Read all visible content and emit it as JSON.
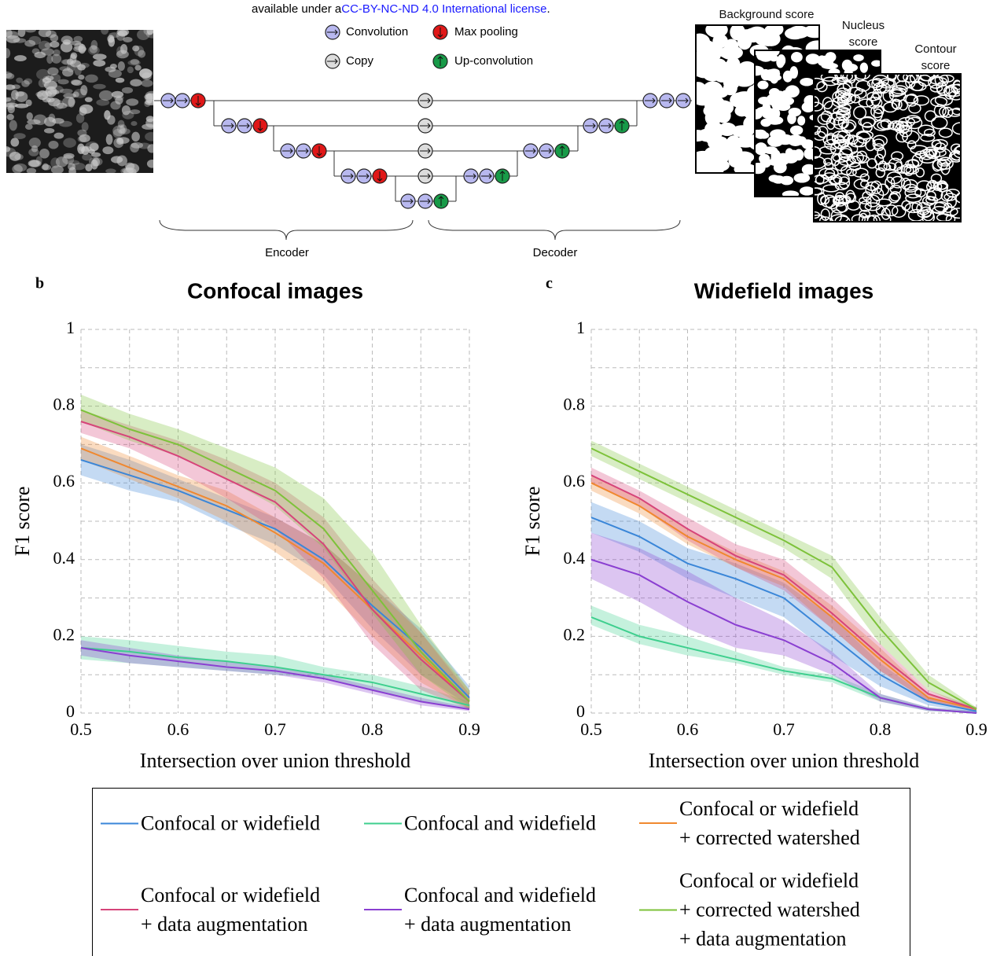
{
  "header": {
    "prefix": "available under a",
    "link": "CC-BY-NC-ND 4.0 International license",
    "suffix": "."
  },
  "diagram": {
    "legend": {
      "convolution": "Convolution",
      "max_pooling": "Max pooling",
      "copy": "Copy",
      "up_convolution": "Up-convolution"
    },
    "outputs": [
      "Background score",
      "Nucleus score",
      "Contour score"
    ],
    "encoder": "Encoder",
    "decoder": "Decoder"
  },
  "chart_data": [
    {
      "type": "line",
      "panel": "b",
      "title": "Confocal images",
      "x_label": "Intersection over union threshold",
      "y_label": "F1 score",
      "x": [
        0.5,
        0.55,
        0.6,
        0.65,
        0.7,
        0.75,
        0.8,
        0.85,
        0.9
      ],
      "xlim": [
        0.5,
        0.9
      ],
      "ylim": [
        0,
        1
      ],
      "xticks": [
        0.5,
        0.6,
        0.7,
        0.8,
        0.9
      ],
      "yticks": [
        0,
        0.2,
        0.4,
        0.6,
        0.8,
        1
      ],
      "minor_xticks": [
        0.55,
        0.65,
        0.75,
        0.85
      ],
      "minor_yticks": [
        0.1,
        0.3,
        0.5,
        0.7,
        0.9
      ],
      "grid": true,
      "series": [
        {
          "name": "Confocal or widefield",
          "color": "#3a86d8",
          "values": [
            0.66,
            0.62,
            0.58,
            0.53,
            0.48,
            0.4,
            0.28,
            0.17,
            0.04
          ],
          "lower": [
            0.62,
            0.58,
            0.55,
            0.49,
            0.44,
            0.36,
            0.22,
            0.1,
            0.02
          ],
          "upper": [
            0.7,
            0.66,
            0.61,
            0.56,
            0.51,
            0.44,
            0.33,
            0.22,
            0.07
          ]
        },
        {
          "name": "Confocal and widefield",
          "color": "#3ecf8e",
          "values": [
            0.17,
            0.16,
            0.145,
            0.135,
            0.12,
            0.1,
            0.08,
            0.05,
            0.02
          ],
          "lower": [
            0.14,
            0.13,
            0.12,
            0.11,
            0.1,
            0.09,
            0.06,
            0.03,
            0.01
          ],
          "upper": [
            0.2,
            0.19,
            0.175,
            0.16,
            0.15,
            0.12,
            0.1,
            0.07,
            0.03
          ]
        },
        {
          "name": "Confocal or widefield\n+ corrected watershed",
          "color": "#f0882f",
          "values": [
            0.69,
            0.64,
            0.59,
            0.54,
            0.47,
            0.39,
            0.27,
            0.15,
            0.03
          ],
          "lower": [
            0.66,
            0.61,
            0.56,
            0.5,
            0.42,
            0.33,
            0.2,
            0.08,
            0.01
          ],
          "upper": [
            0.72,
            0.67,
            0.62,
            0.58,
            0.51,
            0.44,
            0.33,
            0.21,
            0.06
          ]
        },
        {
          "name": "Confocal or widefield\n+ data augmentation",
          "color": "#d6447a",
          "values": [
            0.76,
            0.72,
            0.67,
            0.61,
            0.55,
            0.44,
            0.27,
            0.14,
            0.03
          ],
          "lower": [
            0.73,
            0.69,
            0.63,
            0.56,
            0.48,
            0.35,
            0.18,
            0.06,
            0.01
          ],
          "upper": [
            0.79,
            0.75,
            0.71,
            0.66,
            0.6,
            0.51,
            0.35,
            0.21,
            0.05
          ]
        },
        {
          "name": "Confocal and widefield\n+ data augmentation",
          "color": "#8a3fd1",
          "values": [
            0.17,
            0.15,
            0.135,
            0.12,
            0.11,
            0.09,
            0.06,
            0.03,
            0.01
          ],
          "lower": [
            0.15,
            0.13,
            0.12,
            0.11,
            0.1,
            0.08,
            0.05,
            0.02,
            0.005
          ],
          "upper": [
            0.19,
            0.17,
            0.15,
            0.135,
            0.12,
            0.1,
            0.07,
            0.04,
            0.015
          ]
        },
        {
          "name": "Confocal or widefield\n+ corrected watershed\n+ data augmentation",
          "color": "#7dc23a",
          "values": [
            0.79,
            0.74,
            0.7,
            0.64,
            0.58,
            0.48,
            0.32,
            0.16,
            0.03
          ],
          "lower": [
            0.76,
            0.71,
            0.67,
            0.61,
            0.54,
            0.43,
            0.26,
            0.1,
            0.01
          ],
          "upper": [
            0.83,
            0.78,
            0.74,
            0.69,
            0.64,
            0.56,
            0.42,
            0.23,
            0.06
          ]
        }
      ]
    },
    {
      "type": "line",
      "panel": "c",
      "title": "Widefield images",
      "x_label": "Intersection over union threshold",
      "y_label": "F1 score",
      "x": [
        0.5,
        0.55,
        0.6,
        0.65,
        0.7,
        0.75,
        0.8,
        0.85,
        0.9
      ],
      "xlim": [
        0.5,
        0.9
      ],
      "ylim": [
        0,
        1
      ],
      "xticks": [
        0.5,
        0.6,
        0.7,
        0.8,
        0.9
      ],
      "yticks": [
        0,
        0.2,
        0.4,
        0.6,
        0.8,
        1
      ],
      "minor_xticks": [
        0.55,
        0.65,
        0.75,
        0.85
      ],
      "minor_yticks": [
        0.1,
        0.3,
        0.5,
        0.7,
        0.9
      ],
      "grid": true,
      "series": [
        {
          "color": "#3a86d8",
          "values": [
            0.51,
            0.46,
            0.39,
            0.35,
            0.3,
            0.2,
            0.1,
            0.03,
            0.005
          ],
          "lower": [
            0.47,
            0.42,
            0.35,
            0.3,
            0.25,
            0.15,
            0.07,
            0.02,
            0
          ],
          "upper": [
            0.55,
            0.5,
            0.43,
            0.39,
            0.34,
            0.25,
            0.13,
            0.04,
            0.01
          ]
        },
        {
          "color": "#3ecf8e",
          "values": [
            0.25,
            0.2,
            0.17,
            0.14,
            0.11,
            0.09,
            0.04,
            0.01,
            0
          ],
          "lower": [
            0.23,
            0.18,
            0.15,
            0.13,
            0.1,
            0.08,
            0.03,
            0.005,
            0
          ],
          "upper": [
            0.28,
            0.23,
            0.2,
            0.16,
            0.12,
            0.1,
            0.05,
            0.015,
            0.005
          ]
        },
        {
          "color": "#f0882f",
          "values": [
            0.6,
            0.54,
            0.46,
            0.4,
            0.35,
            0.25,
            0.14,
            0.04,
            0.01
          ],
          "lower": [
            0.58,
            0.52,
            0.44,
            0.38,
            0.33,
            0.22,
            0.11,
            0.03,
            0.005
          ],
          "upper": [
            0.62,
            0.56,
            0.48,
            0.42,
            0.37,
            0.28,
            0.17,
            0.05,
            0.015
          ]
        },
        {
          "color": "#d6447a",
          "values": [
            0.62,
            0.56,
            0.48,
            0.41,
            0.36,
            0.26,
            0.15,
            0.05,
            0.01
          ],
          "lower": [
            0.6,
            0.54,
            0.45,
            0.38,
            0.32,
            0.22,
            0.11,
            0.03,
            0.005
          ],
          "upper": [
            0.64,
            0.58,
            0.51,
            0.44,
            0.4,
            0.3,
            0.18,
            0.06,
            0.015
          ]
        },
        {
          "color": "#8a3fd1",
          "values": [
            0.4,
            0.36,
            0.29,
            0.23,
            0.19,
            0.13,
            0.04,
            0.01,
            0
          ],
          "lower": [
            0.35,
            0.29,
            0.22,
            0.17,
            0.15,
            0.1,
            0.03,
            0.005,
            0
          ],
          "upper": [
            0.47,
            0.43,
            0.37,
            0.3,
            0.24,
            0.16,
            0.05,
            0.015,
            0.005
          ]
        },
        {
          "color": "#7dc23a",
          "values": [
            0.69,
            0.63,
            0.57,
            0.51,
            0.45,
            0.38,
            0.22,
            0.08,
            0.01
          ],
          "lower": [
            0.67,
            0.61,
            0.55,
            0.49,
            0.43,
            0.35,
            0.18,
            0.06,
            0.005
          ],
          "upper": [
            0.71,
            0.65,
            0.59,
            0.53,
            0.47,
            0.41,
            0.25,
            0.1,
            0.015
          ]
        }
      ]
    }
  ]
}
